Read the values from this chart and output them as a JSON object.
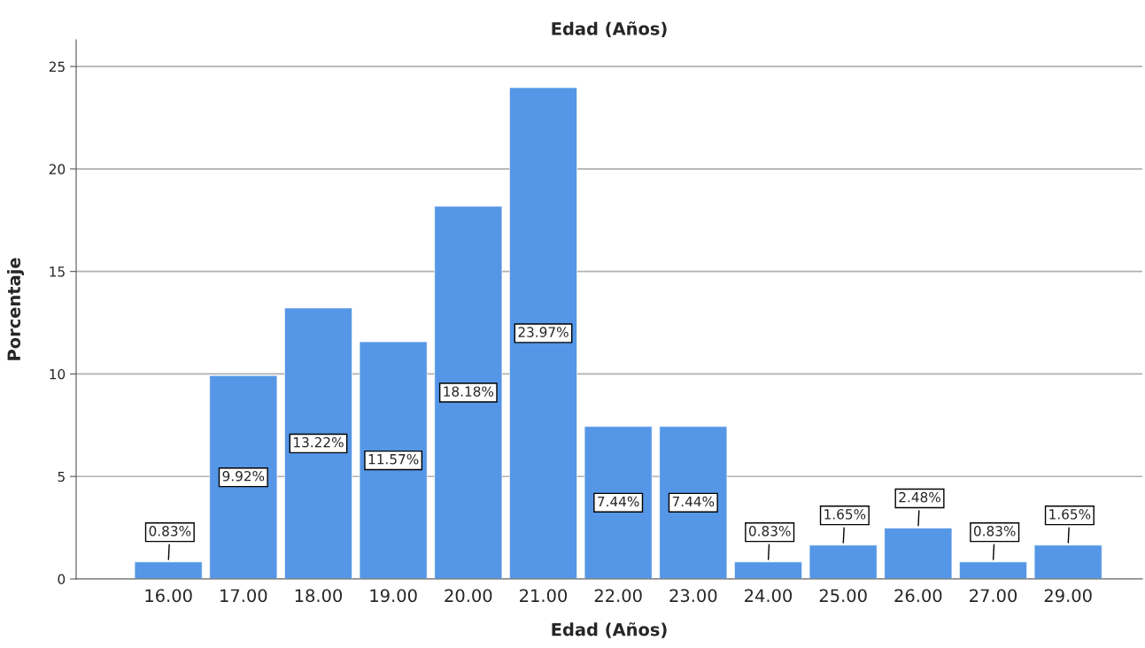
{
  "chart_data": {
    "type": "bar",
    "title": "Edad (Años)",
    "xlabel": "Edad (Años)",
    "ylabel": "Porcentaje",
    "categories": [
      "16.00",
      "17.00",
      "18.00",
      "19.00",
      "20.00",
      "21.00",
      "22.00",
      "23.00",
      "24.00",
      "25.00",
      "26.00",
      "27.00",
      "29.00"
    ],
    "values": [
      0.83,
      9.92,
      13.22,
      11.57,
      18.18,
      23.97,
      7.44,
      7.44,
      0.83,
      1.65,
      2.48,
      0.83,
      1.65
    ],
    "value_labels": [
      "0.83%",
      "9.92%",
      "13.22%",
      "11.57%",
      "18.18%",
      "23.97%",
      "7.44%",
      "7.44%",
      "0.83%",
      "1.65%",
      "2.48%",
      "0.83%",
      "1.65%"
    ],
    "color": "#5596e6",
    "ylim": [
      0,
      26.3
    ],
    "yticks": [
      0,
      5,
      10,
      15,
      20,
      25
    ],
    "grid": "y",
    "legend": false
  }
}
